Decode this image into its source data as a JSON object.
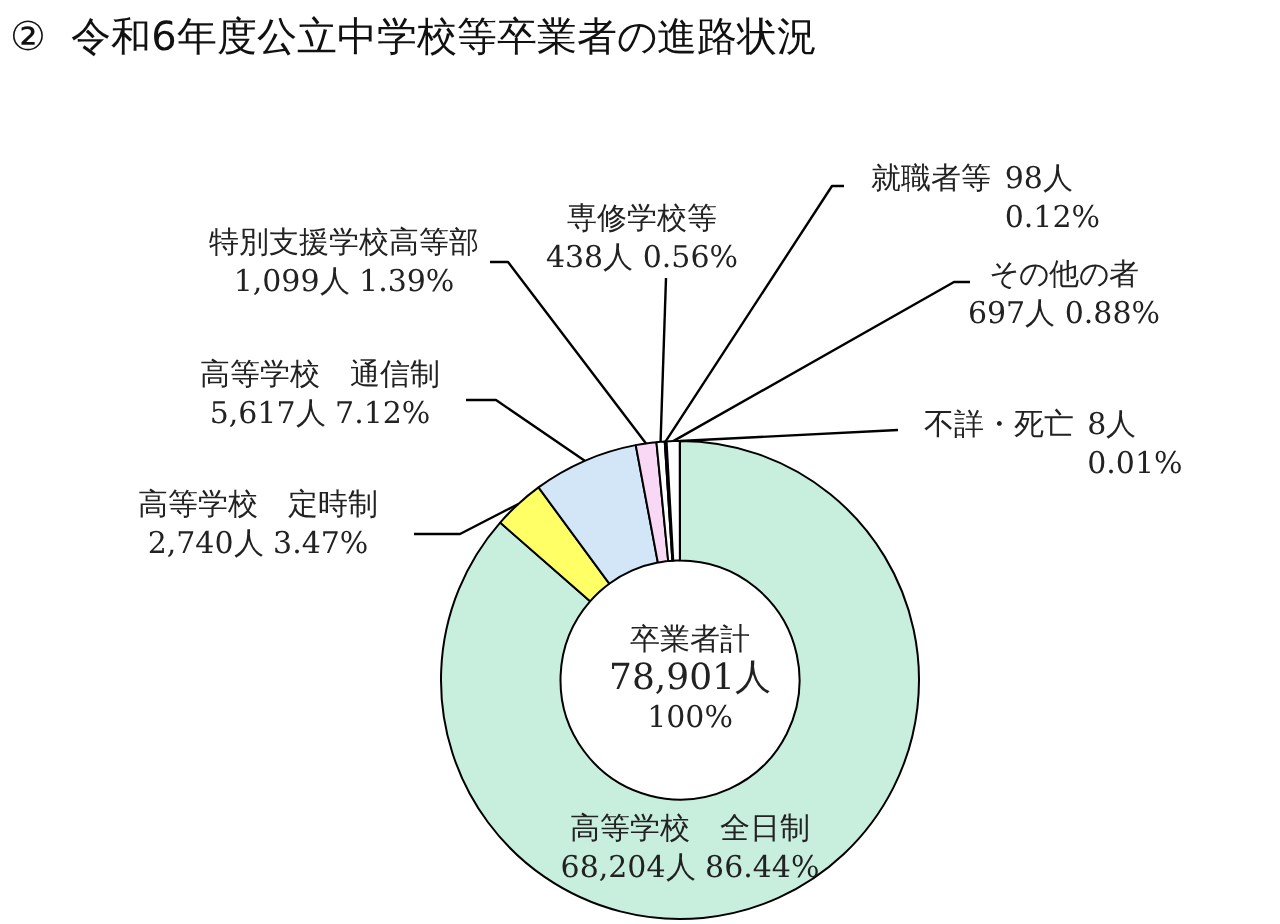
{
  "chart_data": {
    "type": "donut",
    "title": "②  令和6年度公立中学校等卒業者の進路状況",
    "categories": [
      "高等学校　全日制",
      "高等学校　定時制",
      "高等学校　通信制",
      "特別支援学校高等部",
      "専修学校等",
      "就職者等",
      "その他の者",
      "不詳・死亡"
    ],
    "values": [
      68204,
      2740,
      5617,
      1099,
      438,
      98,
      697,
      8
    ],
    "value_labels": [
      "68,204人 86.44%",
      "2,740人 3.47%",
      "5,617人 7.12%",
      "1,099人 1.39%",
      "438人 0.56%",
      "98人 0.12%",
      "697人 0.88%",
      "8人 0.01%"
    ],
    "colors": [
      "#c8efde",
      "#ffff66",
      "#d2e6f7",
      "#f8d8f4",
      "#ffffff",
      "#ffffff",
      "#ffffff",
      "#ffffff"
    ],
    "annotations": [
      "卒業者計\n78,901人\n100%"
    ]
  }
}
